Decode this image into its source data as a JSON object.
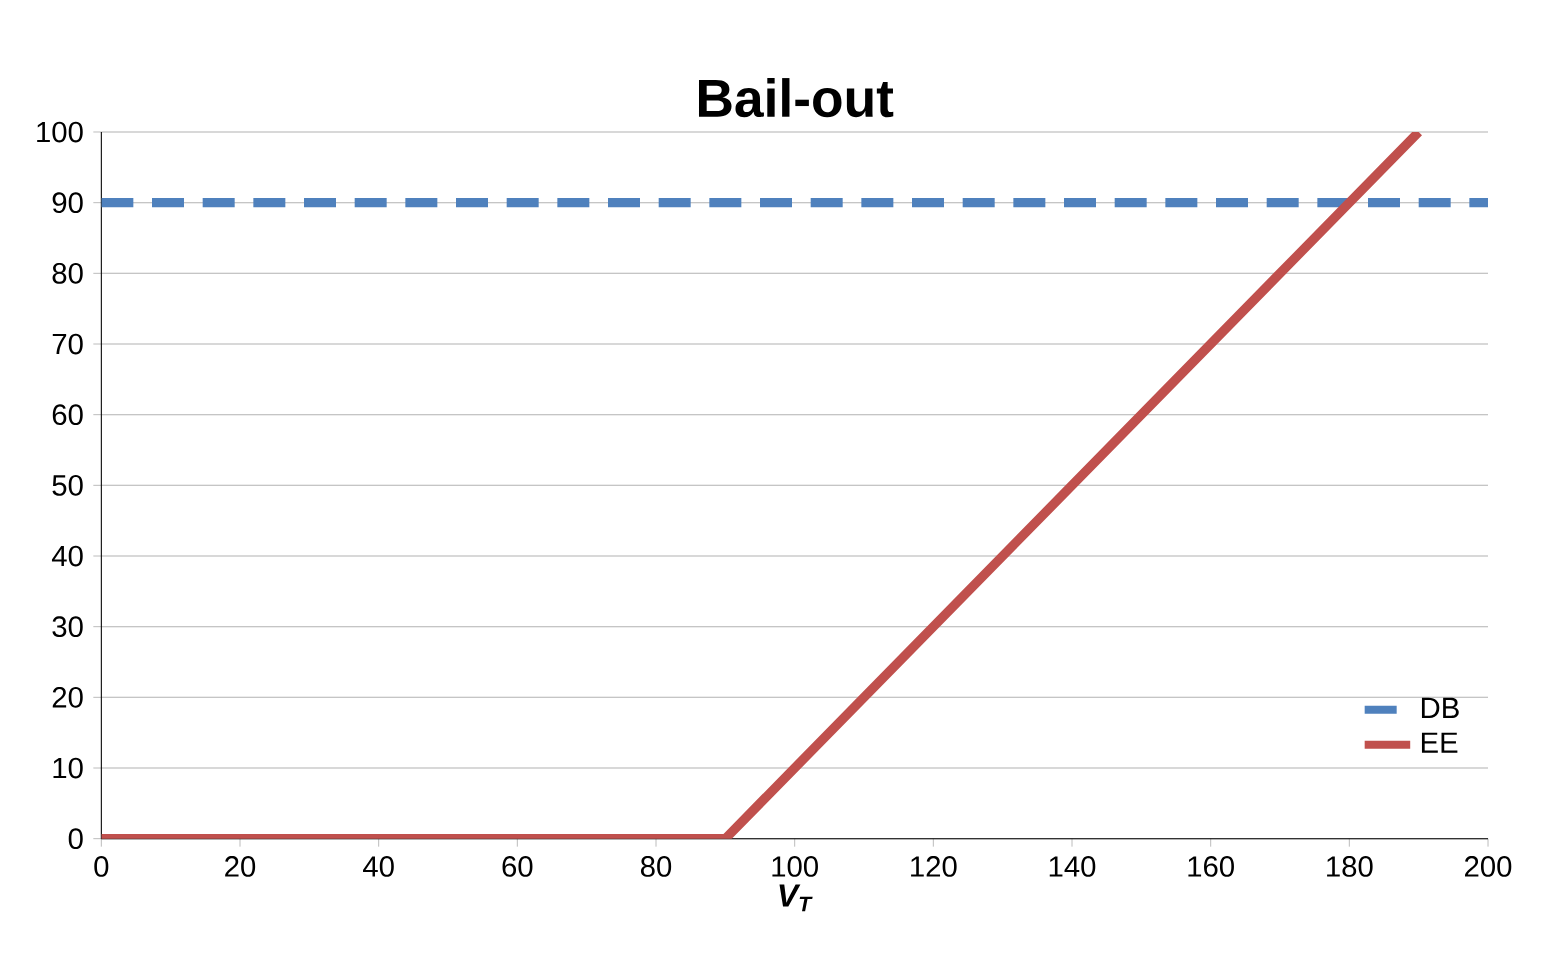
{
  "chart_data": {
    "type": "line",
    "title": "Bail-out",
    "xlabel": "V$_{T}$",
    "series": [
      {
        "name": "DB",
        "color": "#4f81bd",
        "line_style": "dashed",
        "x": [
          0,
          200
        ],
        "values": [
          90,
          90
        ]
      },
      {
        "name": "EE",
        "color": "#c0504d",
        "line_style": "solid",
        "x": [
          0,
          90,
          190
        ],
        "values": [
          0,
          0,
          100
        ]
      }
    ],
    "xlim": [
      0,
      200
    ],
    "xticks": [
      0,
      20,
      40,
      60,
      80,
      100,
      120,
      140,
      160,
      180,
      200
    ],
    "ylim": [
      0,
      100
    ],
    "yticks": [
      0,
      10,
      20,
      30,
      40,
      50,
      60,
      70,
      80,
      90,
      100
    ],
    "grid": "y",
    "legend": "bottom right",
    "marker": "none"
  }
}
